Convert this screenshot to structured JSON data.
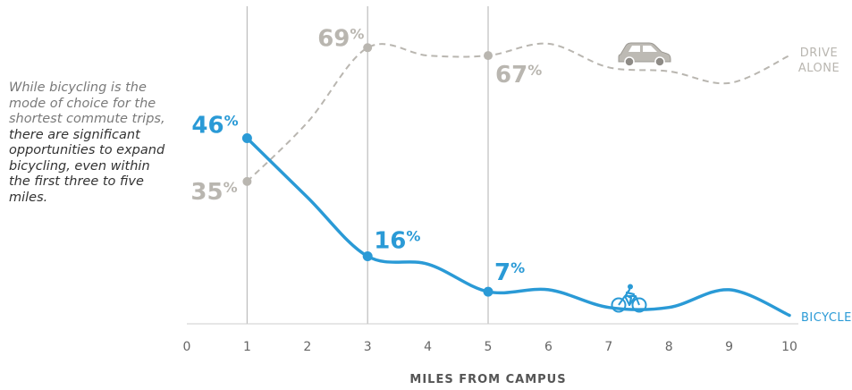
{
  "note": {
    "muted": "While bicycling is the mode of choice for the shortest commute trips,",
    "strong": "there are significant opportunities to expand bicycling, even within the first three to five miles."
  },
  "colors": {
    "bicycle": "#2a9ad6",
    "drive": "#b9b6b0",
    "gridline": "#bdbdbd",
    "axis": "#cccccc"
  },
  "chart_data": {
    "type": "line",
    "xlabel": "MILES FROM CAMPUS",
    "ylabel": "",
    "title": "",
    "xlim": [
      0,
      10
    ],
    "ylim": [
      0,
      80
    ],
    "x_ticks": [
      "0",
      "1",
      "2",
      "3",
      "4",
      "5",
      "6",
      "7",
      "8",
      "9",
      "10"
    ],
    "vertical_lines": [
      1,
      3,
      5
    ],
    "series": [
      {
        "name_lines": [
          "DRIVE",
          "ALONE"
        ],
        "style": "dashed",
        "color": "#b9b6b0",
        "icon": "car-icon",
        "x": [
          1,
          2,
          3,
          4,
          5,
          6,
          7,
          8,
          9,
          10
        ],
        "y": [
          35,
          50,
          69,
          67,
          67,
          70,
          64,
          63,
          60,
          67
        ],
        "labels": [
          {
            "x": 1,
            "y": 35,
            "value": "35",
            "unit": "%"
          },
          {
            "x": 3,
            "y": 69,
            "value": "69",
            "unit": "%"
          },
          {
            "x": 5,
            "y": 67,
            "value": "67",
            "unit": "%"
          }
        ]
      },
      {
        "name": "BICYCLE",
        "style": "solid",
        "color": "#2a9ad6",
        "icon": "bicycle-icon",
        "x": [
          1,
          2,
          3,
          4,
          5,
          6,
          7,
          8,
          9,
          10
        ],
        "y": [
          46,
          31,
          16,
          14,
          7,
          7.5,
          3,
          3,
          7.5,
          1
        ],
        "labels": [
          {
            "x": 1,
            "y": 46,
            "value": "46",
            "unit": "%"
          },
          {
            "x": 3,
            "y": 16,
            "value": "16",
            "unit": "%"
          },
          {
            "x": 5,
            "y": 7,
            "value": "7",
            "unit": "%"
          }
        ]
      }
    ]
  }
}
